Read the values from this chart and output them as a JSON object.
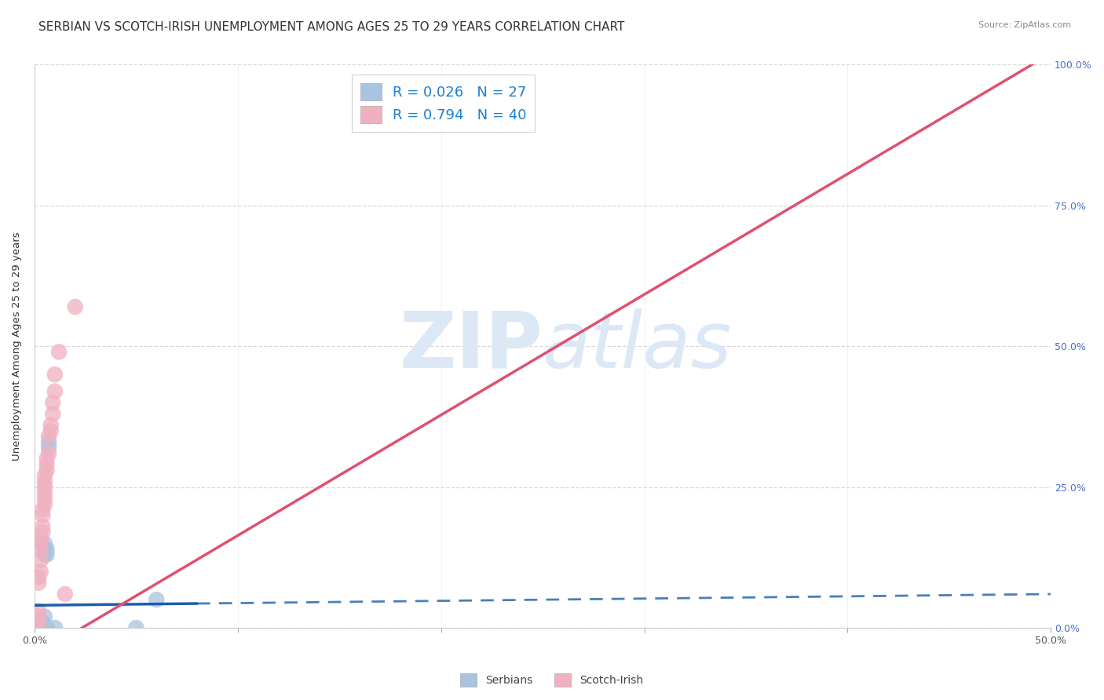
{
  "title": "SERBIAN VS SCOTCH-IRISH UNEMPLOYMENT AMONG AGES 25 TO 29 YEARS CORRELATION CHART",
  "source_text": "Source: ZipAtlas.com",
  "ylabel_label": "Unemployment Among Ages 25 to 29 years",
  "xmin": 0.0,
  "xmax": 0.5,
  "ymin": 0.0,
  "ymax": 1.0,
  "serbian_color": "#a8c4e0",
  "scottish_color": "#f0b0c0",
  "serbian_line_color": "#1a5fa8",
  "scottish_line_color": "#e05070",
  "serbian_R": 0.026,
  "serbian_N": 27,
  "scottish_R": 0.794,
  "scottish_N": 40,
  "legend_R_color": "#1a7fd4",
  "watermark_color": "#dce8f5",
  "grid_color": "#d8d8d8",
  "background_color": "#ffffff",
  "title_fontsize": 11,
  "axis_label_fontsize": 9.5,
  "tick_fontsize": 9,
  "legend_fontsize": 13,
  "serbian_scatter": [
    [
      0.0,
      0.0
    ],
    [
      0.0,
      0.0
    ],
    [
      0.0,
      0.0
    ],
    [
      0.0,
      0.0
    ],
    [
      0.0,
      0.0
    ],
    [
      0.002,
      0.0
    ],
    [
      0.002,
      0.0
    ],
    [
      0.002,
      0.0
    ],
    [
      0.003,
      0.0
    ],
    [
      0.003,
      0.0
    ],
    [
      0.003,
      0.01
    ],
    [
      0.004,
      0.0
    ],
    [
      0.004,
      0.01
    ],
    [
      0.005,
      0.0
    ],
    [
      0.005,
      0.02
    ],
    [
      0.005,
      0.13
    ],
    [
      0.005,
      0.14
    ],
    [
      0.005,
      0.15
    ],
    [
      0.006,
      0.0
    ],
    [
      0.006,
      0.0
    ],
    [
      0.006,
      0.13
    ],
    [
      0.006,
      0.14
    ],
    [
      0.007,
      0.32
    ],
    [
      0.007,
      0.33
    ],
    [
      0.01,
      0.0
    ],
    [
      0.05,
      0.0
    ],
    [
      0.06,
      0.05
    ]
  ],
  "scottish_scatter": [
    [
      0.0,
      0.0
    ],
    [
      0.0,
      0.0
    ],
    [
      0.0,
      0.01
    ],
    [
      0.001,
      0.0
    ],
    [
      0.001,
      0.01
    ],
    [
      0.001,
      0.01
    ],
    [
      0.002,
      0.01
    ],
    [
      0.002,
      0.02
    ],
    [
      0.002,
      0.03
    ],
    [
      0.002,
      0.08
    ],
    [
      0.002,
      0.09
    ],
    [
      0.003,
      0.1
    ],
    [
      0.003,
      0.12
    ],
    [
      0.003,
      0.14
    ],
    [
      0.003,
      0.15
    ],
    [
      0.003,
      0.16
    ],
    [
      0.004,
      0.17
    ],
    [
      0.004,
      0.18
    ],
    [
      0.004,
      0.2
    ],
    [
      0.004,
      0.21
    ],
    [
      0.005,
      0.22
    ],
    [
      0.005,
      0.23
    ],
    [
      0.005,
      0.24
    ],
    [
      0.005,
      0.25
    ],
    [
      0.005,
      0.26
    ],
    [
      0.005,
      0.27
    ],
    [
      0.006,
      0.28
    ],
    [
      0.006,
      0.29
    ],
    [
      0.006,
      0.3
    ],
    [
      0.007,
      0.31
    ],
    [
      0.007,
      0.34
    ],
    [
      0.008,
      0.35
    ],
    [
      0.008,
      0.36
    ],
    [
      0.009,
      0.38
    ],
    [
      0.009,
      0.4
    ],
    [
      0.01,
      0.42
    ],
    [
      0.01,
      0.45
    ],
    [
      0.012,
      0.49
    ],
    [
      0.015,
      0.06
    ],
    [
      0.02,
      0.57
    ]
  ]
}
